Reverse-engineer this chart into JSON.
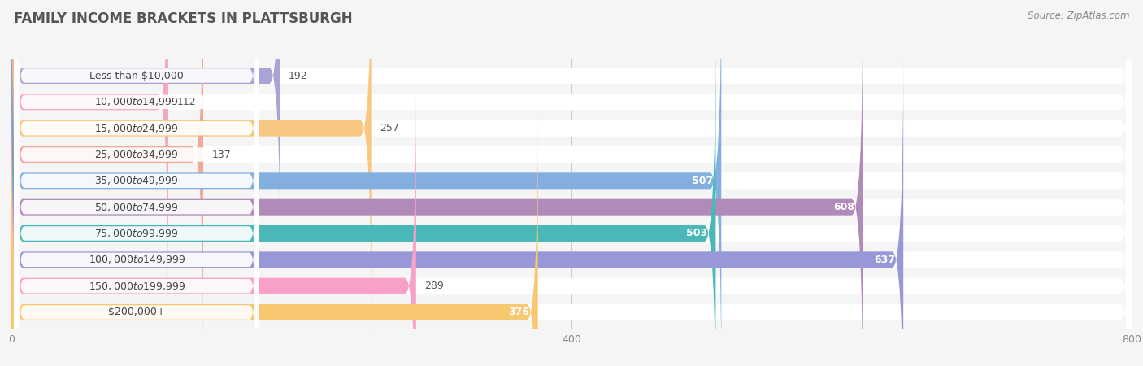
{
  "title": "FAMILY INCOME BRACKETS IN PLATTSBURGH",
  "source": "Source: ZipAtlas.com",
  "categories": [
    "Less than $10,000",
    "$10,000 to $14,999",
    "$15,000 to $24,999",
    "$25,000 to $34,999",
    "$35,000 to $49,999",
    "$50,000 to $74,999",
    "$75,000 to $99,999",
    "$100,000 to $149,999",
    "$150,000 to $199,999",
    "$200,000+"
  ],
  "values": [
    192,
    112,
    257,
    137,
    507,
    608,
    503,
    637,
    289,
    376
  ],
  "bar_colors": [
    "#a8a4d4",
    "#f4a8c0",
    "#f8c882",
    "#f0a898",
    "#82aee0",
    "#b08ab8",
    "#4ab8b8",
    "#9898d8",
    "#f8a0c8",
    "#f8c870"
  ],
  "xlim": [
    0,
    800
  ],
  "background_color": "#f5f5f5",
  "bar_bg_color": "#e8e8e8",
  "title_fontsize": 12,
  "label_fontsize": 9,
  "value_fontsize": 9,
  "source_fontsize": 8.5,
  "inside_threshold": 350
}
